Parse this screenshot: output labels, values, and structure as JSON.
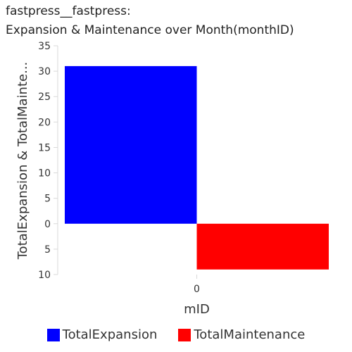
{
  "title": [
    "fastpress__fastpress:",
    "Expansion & Maintenance over Month(monthID)"
  ],
  "chart_data": {
    "type": "bar",
    "layout": "diverging",
    "categories": [
      "0"
    ],
    "series": [
      {
        "name": "TotalExpansion",
        "values": [
          31
        ],
        "direction": "up",
        "color": "#0000ff"
      },
      {
        "name": "TotalMaintenance",
        "values": [
          9
        ],
        "direction": "down",
        "color": "#ff0000"
      }
    ],
    "xlabel": "mID",
    "ylabel": "TotalExpansion & TotalMainte...",
    "yticks_up": [
      "35",
      "30",
      "25",
      "20",
      "15",
      "10",
      "5",
      "0"
    ],
    "yticks_down": [
      "5",
      "10"
    ],
    "ylim": [
      -10,
      35
    ],
    "grid": false,
    "legend": "bottom"
  }
}
